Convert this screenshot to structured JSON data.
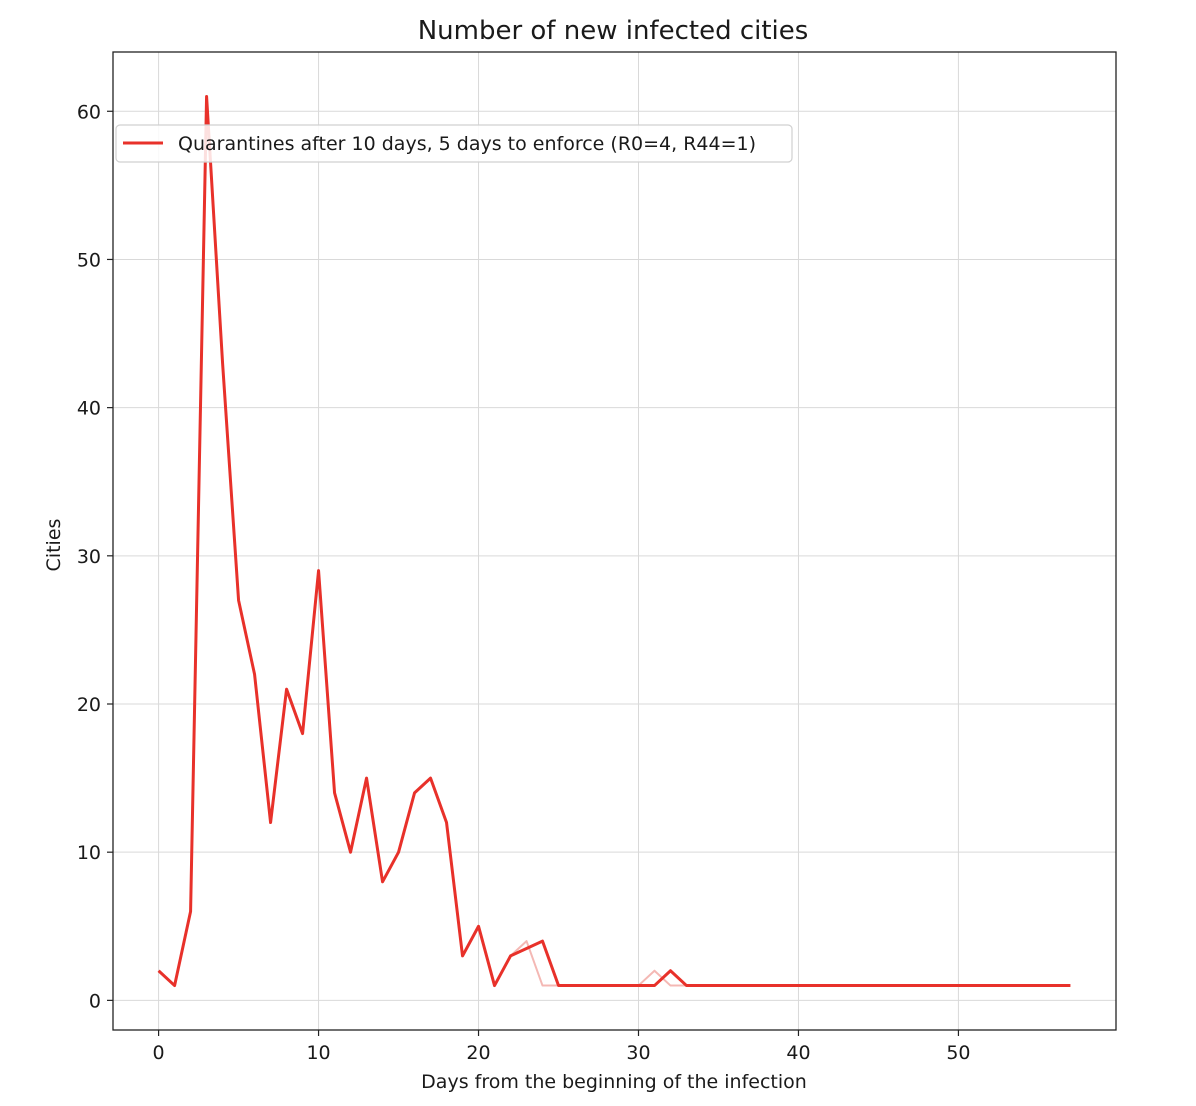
{
  "chart_data": {
    "type": "line",
    "title": "Number of new infected cities",
    "xlabel": "Days from the beginning of the infection",
    "ylabel": "Cities",
    "xlim": [
      -2.85,
      59.85
    ],
    "ylim": [
      -2,
      64
    ],
    "xticks": [
      0,
      10,
      20,
      30,
      40,
      50
    ],
    "yticks": [
      0,
      10,
      20,
      30,
      40,
      50,
      60
    ],
    "grid": true,
    "legend_position": "upper-left",
    "series": [
      {
        "name": "Quarantines after 10 days, 5 days to enforce (R0=4, R44=1)",
        "color": "#e8312a",
        "x": [
          0,
          1,
          2,
          3,
          4,
          5,
          6,
          7,
          8,
          9,
          10,
          11,
          12,
          13,
          14,
          15,
          16,
          17,
          18,
          19,
          20,
          21,
          22,
          23,
          24,
          25,
          26,
          27,
          28,
          29,
          30,
          31,
          32,
          33,
          34,
          35,
          36,
          37,
          38,
          39,
          40,
          41,
          42,
          43,
          44,
          45,
          46,
          47,
          48,
          49,
          50,
          51,
          52,
          53,
          54,
          55,
          56,
          57
        ],
        "values": [
          2,
          1,
          6,
          61,
          43,
          27,
          22,
          12,
          21,
          18,
          29,
          14,
          10,
          15,
          8,
          10,
          14,
          15,
          12,
          3,
          5,
          1,
          3,
          3.5,
          4,
          1,
          1,
          1,
          1,
          1,
          1,
          1,
          2,
          1,
          1,
          1,
          1,
          1,
          1,
          1,
          1,
          1,
          1,
          1,
          1,
          1,
          1,
          1,
          1,
          1,
          1,
          1,
          1,
          1,
          1,
          1,
          1,
          1
        ]
      },
      {
        "name": "",
        "color": "#f4b8b4",
        "x": [
          0,
          1,
          2,
          3,
          4,
          5,
          6,
          7,
          8,
          9,
          10,
          11,
          12,
          13,
          14,
          15,
          16,
          17,
          18,
          19,
          20,
          21,
          22,
          23,
          24,
          25,
          26,
          27,
          28,
          29,
          30,
          31,
          32,
          33,
          34,
          35,
          36,
          37,
          38,
          39,
          40,
          41,
          42,
          43,
          44,
          45,
          46,
          47,
          48,
          49,
          50,
          51,
          52,
          53,
          54,
          55,
          56,
          57
        ],
        "values": [
          2,
          1,
          6,
          61,
          43,
          27,
          22,
          12,
          21,
          18,
          29,
          14,
          10,
          15,
          8,
          10,
          14,
          15,
          12,
          3,
          5,
          1,
          3,
          4,
          1,
          1,
          1,
          1,
          1,
          1,
          1,
          2,
          1,
          1,
          1,
          1,
          1,
          1,
          1,
          1,
          1,
          1,
          1,
          1,
          1,
          1,
          1,
          1,
          1,
          1,
          1,
          1,
          1,
          1,
          1,
          1,
          1,
          1
        ]
      }
    ]
  }
}
